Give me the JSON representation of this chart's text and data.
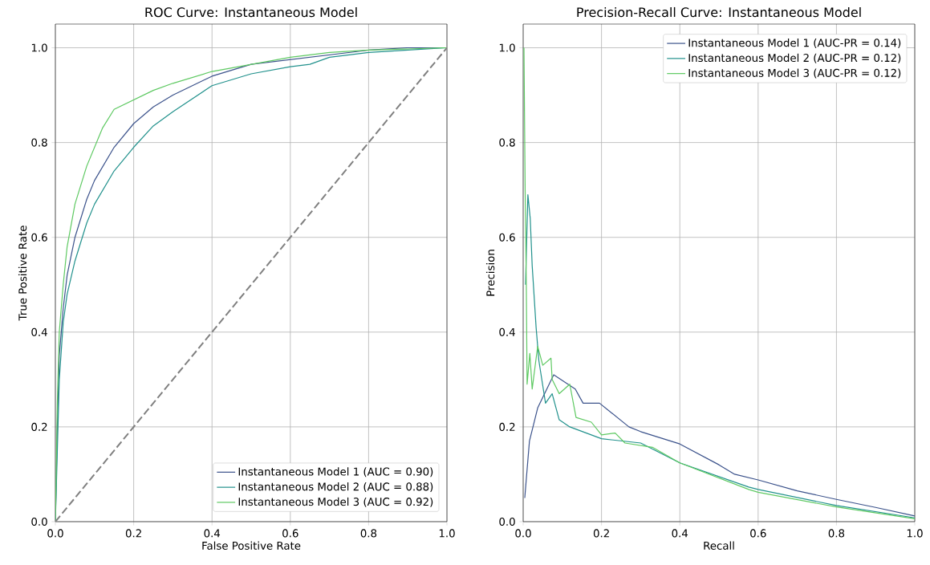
{
  "chart_data": [
    {
      "type": "line",
      "title": "ROC Curve: Instantaneous Model",
      "xlabel": "False Positive Rate",
      "ylabel": "True Positive Rate",
      "xlim": [
        0,
        1
      ],
      "ylim": [
        0,
        1.05
      ],
      "xticks": [
        {
          "value": 0,
          "label": "0.0"
        },
        {
          "value": 0.2,
          "label": "0.2"
        },
        {
          "value": 0.4,
          "label": "0.4"
        },
        {
          "value": 0.6,
          "label": "0.6"
        },
        {
          "value": 0.8,
          "label": "0.8"
        },
        {
          "value": 1,
          "label": "1.0"
        }
      ],
      "yticks": [
        {
          "value": 0,
          "label": "0.0"
        },
        {
          "value": 0.2,
          "label": "0.2"
        },
        {
          "value": 0.4,
          "label": "0.4"
        },
        {
          "value": 0.6,
          "label": "0.6"
        },
        {
          "value": 0.8,
          "label": "0.8"
        },
        {
          "value": 1,
          "label": "1.0"
        }
      ],
      "grid": true,
      "legend": "bottom right",
      "marker": "none",
      "series": [
        {
          "name": "Instantaneous Model 1 (AUC = 0.90)",
          "color": "#3b528b",
          "line_style": "solid",
          "x": [
            0,
            0.005,
            0.01,
            0.02,
            0.03,
            0.05,
            0.08,
            0.1,
            0.15,
            0.2,
            0.25,
            0.3,
            0.4,
            0.5,
            0.6,
            0.7,
            0.8,
            0.9,
            1
          ],
          "values": [
            0,
            0.2,
            0.35,
            0.45,
            0.52,
            0.6,
            0.68,
            0.72,
            0.79,
            0.84,
            0.875,
            0.9,
            0.94,
            0.965,
            null,
            null,
            0.995,
            1,
            1
          ]
        },
        {
          "name": "Instantaneous Model 2 (AUC = 0.88)",
          "color": "#21918c",
          "line_style": "solid",
          "x": [
            0,
            0.005,
            0.01,
            0.02,
            0.03,
            0.05,
            0.08,
            0.1,
            0.15,
            0.2,
            0.25,
            0.3,
            0.4,
            0.5,
            0.6,
            0.65,
            0.7,
            0.8,
            0.9,
            1
          ],
          "values": [
            0,
            0.15,
            0.3,
            0.42,
            0.48,
            0.55,
            0.63,
            0.67,
            0.74,
            0.79,
            0.835,
            0.865,
            0.92,
            0.945,
            0.96,
            0.965,
            0.98,
            0.99,
            0.995,
            1
          ]
        },
        {
          "name": "Instantaneous Model 3 (AUC = 0.92)",
          "color": "#5ec962",
          "line_style": "solid",
          "x": [
            0,
            0.005,
            0.01,
            0.02,
            0.03,
            0.05,
            0.08,
            0.1,
            0.12,
            0.15,
            0.2,
            0.25,
            0.3,
            0.4,
            0.5,
            0.6,
            0.7,
            0.8,
            1
          ],
          "values": [
            0,
            0.25,
            0.4,
            0.5,
            0.58,
            0.67,
            0.75,
            0.79,
            0.83,
            0.87,
            0.89,
            0.91,
            0.925,
            0.95,
            0.965,
            0.98,
            0.99,
            0.995,
            1
          ]
        },
        {
          "color": "#808080",
          "line_style": "dashed",
          "x": [
            0,
            1
          ],
          "values": [
            0,
            1
          ]
        }
      ]
    },
    {
      "type": "line",
      "title": "Precision-Recall Curve: Instantaneous Model",
      "xlabel": "Recall",
      "ylabel": "Precision",
      "xlim": [
        0,
        1
      ],
      "ylim": [
        0,
        1.05
      ],
      "xticks": [
        {
          "value": 0,
          "label": "0.0"
        },
        {
          "value": 0.2,
          "label": "0.2"
        },
        {
          "value": 0.4,
          "label": "0.4"
        },
        {
          "value": 0.6,
          "label": "0.6"
        },
        {
          "value": 0.8,
          "label": "0.8"
        },
        {
          "value": 1,
          "label": "1.0"
        }
      ],
      "yticks": [
        {
          "value": 0,
          "label": "0.0"
        },
        {
          "value": 0.2,
          "label": "0.2"
        },
        {
          "value": 0.4,
          "label": "0.4"
        },
        {
          "value": 0.6,
          "label": "0.6"
        },
        {
          "value": 0.8,
          "label": "0.8"
        },
        {
          "value": 1,
          "label": "1.0"
        }
      ],
      "grid": true,
      "legend": "top right",
      "marker": "none",
      "series": [
        {
          "name": "Instantaneous Model 1 (AUC-PR = 0.14)",
          "color": "#3b528b",
          "line_style": "solid",
          "x": [
            0.004,
            0.016,
            0.037,
            0.078,
            0.133,
            0.153,
            0.195,
            0.27,
            0.3,
            0.4,
            0.5,
            0.54,
            0.6,
            0.7,
            0.8,
            0.9,
            1
          ],
          "values": [
            0.05,
            0.17,
            0.24,
            0.31,
            0.28,
            0.25,
            0.25,
            0.2,
            0.19,
            0.164,
            0.12,
            0.1,
            0.088,
            0.065,
            0.047,
            0.03,
            0.012
          ]
        },
        {
          "name": "Instantaneous Model 2 (AUC-PR = 0.12)",
          "color": "#21918c",
          "line_style": "solid",
          "x": [
            0.006,
            0.012,
            0.018,
            0.023,
            0.033,
            0.04,
            0.057,
            0.074,
            0.092,
            0.119,
            0.2,
            0.3,
            0.4,
            0.576,
            0.6,
            0.8,
            1
          ],
          "values": [
            0.5,
            0.69,
            0.64,
            0.54,
            0.41,
            0.34,
            0.25,
            0.27,
            0.215,
            0.2,
            0.175,
            0.166,
            0.124,
            0.073,
            0.068,
            0.034,
            0.008
          ]
        },
        {
          "name": "Instantaneous Model 3 (AUC-PR = 0.12)",
          "color": "#5ec962",
          "line_style": "solid",
          "x": [
            0.002,
            0.005,
            0.008,
            0.01,
            0.017,
            0.023,
            0.037,
            0.05,
            0.071,
            0.074,
            0.092,
            0.119,
            0.135,
            0.174,
            0.2,
            0.235,
            0.26,
            0.33,
            0.4,
            0.576,
            0.6,
            0.8,
            1
          ],
          "values": [
            1.0,
            0.7,
            0.5,
            0.29,
            0.355,
            0.28,
            0.37,
            0.33,
            0.345,
            0.3,
            0.27,
            0.29,
            0.22,
            0.21,
            0.183,
            0.187,
            0.166,
            0.157,
            0.124,
            0.068,
            0.062,
            0.031,
            0.006
          ]
        }
      ]
    }
  ]
}
